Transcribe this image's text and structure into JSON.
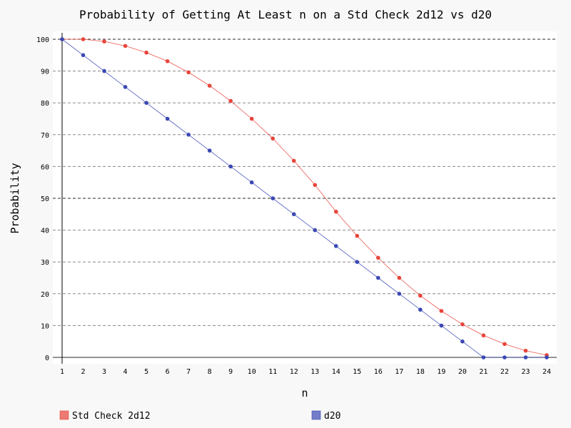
{
  "chart_data": {
    "type": "line",
    "title": "Probability of Getting At Least n on a Std Check 2d12 vs d20",
    "xlabel": "n",
    "ylabel": "Probability",
    "x": [
      1,
      2,
      3,
      4,
      5,
      6,
      7,
      8,
      9,
      10,
      11,
      12,
      13,
      14,
      15,
      16,
      17,
      18,
      19,
      20,
      21,
      22,
      23,
      24
    ],
    "ylim": [
      0,
      100
    ],
    "yticks": [
      0,
      10,
      20,
      30,
      40,
      50,
      60,
      70,
      80,
      90,
      100
    ],
    "grid": "horizontal dashed",
    "legend_position": "bottom",
    "series": [
      {
        "name": "Std Check 2d12",
        "color": "#e8443a",
        "values": [
          100,
          100,
          99.3,
          97.9,
          95.8,
          93.1,
          89.6,
          85.4,
          80.6,
          75.0,
          68.8,
          61.8,
          54.2,
          45.8,
          38.2,
          31.3,
          25.0,
          19.4,
          14.6,
          10.4,
          6.9,
          4.2,
          2.1,
          0.7
        ]
      },
      {
        "name": "d20",
        "color": "#3a48b4",
        "values": [
          100,
          95,
          90,
          85,
          80,
          75,
          70,
          65,
          60,
          55,
          50,
          45,
          40,
          35,
          30,
          25,
          20,
          15,
          10,
          5,
          0,
          0,
          0,
          0
        ]
      }
    ]
  }
}
